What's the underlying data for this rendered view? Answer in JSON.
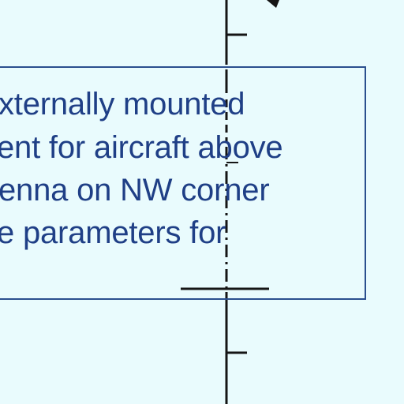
{
  "colors": {
    "background": "#e9fbfd",
    "box_border": "#2a4f8e",
    "text": "#1f3f86",
    "linework": "#151515"
  },
  "note": {
    "lines": [
      "xternally mounted",
      "ent for aircraft above",
      "enna on NW corner",
      "e parameters for"
    ]
  },
  "icons": {
    "arrow": "arrow-tip-icon"
  }
}
